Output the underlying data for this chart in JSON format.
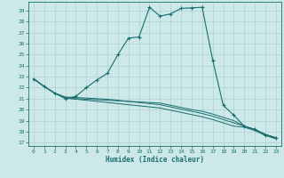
{
  "title": "",
  "xlabel": "Humidex (Indice chaleur)",
  "xlim": [
    -0.5,
    23.5
  ],
  "ylim": [
    16.7,
    29.8
  ],
  "yticks": [
    17,
    18,
    19,
    20,
    21,
    22,
    23,
    24,
    25,
    26,
    27,
    28,
    29
  ],
  "xticks": [
    0,
    1,
    2,
    3,
    4,
    5,
    6,
    7,
    8,
    9,
    10,
    11,
    12,
    13,
    14,
    15,
    16,
    17,
    18,
    19,
    20,
    21,
    22,
    23
  ],
  "bg_color": "#cce8e8",
  "line_color": "#1a6e6e",
  "grid_color": "#b0d0d0",
  "line1_x": [
    0,
    1,
    2,
    3,
    4,
    5,
    6,
    7,
    8,
    9,
    10,
    11,
    12,
    13,
    14,
    15,
    16,
    17,
    18,
    19,
    20,
    21,
    22,
    23
  ],
  "line1_y": [
    22.8,
    22.1,
    21.5,
    21.0,
    21.2,
    22.0,
    22.7,
    23.3,
    25.0,
    26.5,
    26.6,
    29.3,
    28.5,
    28.7,
    29.2,
    29.25,
    29.3,
    24.5,
    20.4,
    19.5,
    18.5,
    18.2,
    17.7,
    17.4
  ],
  "line2_x": [
    0,
    1,
    2,
    3,
    4,
    5,
    6,
    7,
    8,
    9,
    10,
    11,
    12,
    13,
    14,
    15,
    16,
    17,
    18,
    19,
    20,
    21,
    22,
    23
  ],
  "line2_y": [
    22.8,
    22.1,
    21.5,
    21.1,
    21.0,
    20.95,
    20.9,
    20.85,
    20.8,
    20.75,
    20.7,
    20.65,
    20.6,
    20.4,
    20.2,
    20.0,
    19.85,
    19.6,
    19.3,
    19.0,
    18.5,
    18.2,
    17.75,
    17.45
  ],
  "line3_x": [
    0,
    1,
    2,
    3,
    4,
    5,
    6,
    7,
    8,
    9,
    10,
    11,
    12,
    13,
    14,
    15,
    16,
    17,
    18,
    19,
    20,
    21,
    22,
    23
  ],
  "line3_y": [
    22.8,
    22.1,
    21.5,
    21.15,
    21.1,
    21.05,
    21.0,
    20.95,
    20.85,
    20.75,
    20.65,
    20.55,
    20.45,
    20.25,
    20.05,
    19.85,
    19.65,
    19.4,
    19.1,
    18.8,
    18.5,
    18.2,
    17.75,
    17.45
  ],
  "line4_x": [
    0,
    1,
    2,
    3,
    4,
    5,
    6,
    7,
    8,
    9,
    10,
    11,
    12,
    13,
    14,
    15,
    16,
    17,
    18,
    19,
    20,
    21,
    22,
    23
  ],
  "line4_y": [
    22.8,
    22.1,
    21.5,
    21.05,
    20.95,
    20.85,
    20.75,
    20.65,
    20.55,
    20.45,
    20.35,
    20.25,
    20.15,
    19.95,
    19.75,
    19.55,
    19.35,
    19.1,
    18.8,
    18.5,
    18.4,
    18.1,
    17.65,
    17.35
  ]
}
